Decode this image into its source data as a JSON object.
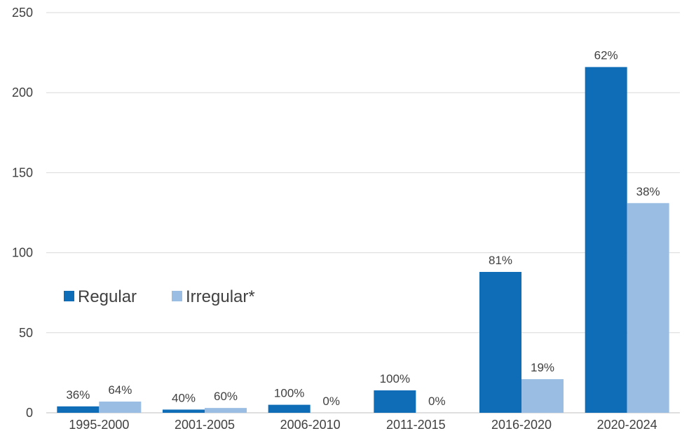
{
  "chart_data": {
    "type": "bar",
    "categories": [
      "1995-2000",
      "2001-2005",
      "2006-2010",
      "2011-2015",
      "2016-2020",
      "2020-2024"
    ],
    "series": [
      {
        "name": "Regular",
        "color": "#0f6db8",
        "values": [
          4,
          2,
          5,
          14,
          88,
          216
        ],
        "labels": [
          "36%",
          "40%",
          "100%",
          "100%",
          "81%",
          "62%"
        ]
      },
      {
        "name": "Irregular*",
        "color": "#99bde3",
        "values": [
          7,
          3,
          0,
          0,
          21,
          131
        ],
        "labels": [
          "64%",
          "60%",
          "0%",
          "0%",
          "19%",
          "38%"
        ]
      }
    ],
    "ylim": [
      0,
      250
    ],
    "yticks": [
      0,
      50,
      100,
      150,
      200,
      250
    ],
    "grid": true,
    "legend_position": "left-middle",
    "title": "",
    "xlabel": "",
    "ylabel": ""
  }
}
